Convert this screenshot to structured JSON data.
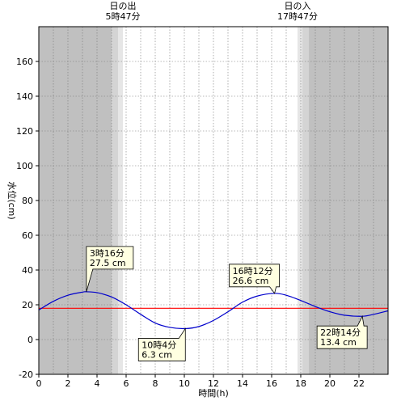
{
  "chart_data": {
    "type": "line",
    "xlabel": "時間(h)",
    "ylabel": "水位(cm)",
    "xlim": [
      0,
      24
    ],
    "ylim": [
      -20,
      180
    ],
    "x_ticks": [
      0,
      2,
      4,
      6,
      8,
      10,
      12,
      14,
      16,
      18,
      20,
      22
    ],
    "y_ticks": [
      -20,
      0,
      20,
      40,
      60,
      80,
      100,
      120,
      140,
      160
    ],
    "grid": true,
    "reference_level": 18,
    "colors": {
      "tide": "#0000cc",
      "reference": "#ff0000",
      "night": "#c0c0c0",
      "twilight_outer": "#d4d4d4",
      "twilight_inner": "#e6e6e6",
      "callout": "#ffffe1"
    },
    "sunrise": {
      "label": "日の出",
      "time": "5時47分",
      "hour": 5.78
    },
    "sunset": {
      "label": "日の入",
      "time": "17時47分",
      "hour": 17.78
    },
    "series": [
      {
        "x": [
          0,
          1,
          2,
          3,
          3.27,
          4,
          5,
          6,
          7,
          8,
          9,
          10.07,
          11,
          12,
          13,
          14,
          15,
          16.2,
          17,
          18,
          19,
          20,
          21,
          22.23,
          23,
          24
        ],
        "y": [
          17,
          22,
          25.5,
          27.3,
          27.5,
          27,
          24.5,
          20,
          14.5,
          9.5,
          7,
          6.3,
          7.5,
          11,
          16,
          21.5,
          25,
          26.6,
          25.5,
          22.5,
          19,
          16,
          14,
          13.4,
          14.5,
          16.5
        ]
      }
    ],
    "annotations": [
      {
        "time": "3時16分",
        "value": "27.5 cm",
        "x": 3.27,
        "y": 27.5
      },
      {
        "time": "10時4分",
        "value": "6.3 cm",
        "x": 10.07,
        "y": 6.3
      },
      {
        "time": "16時12分",
        "value": "26.6 cm",
        "x": 16.2,
        "y": 26.6
      },
      {
        "time": "22時14分",
        "value": "13.4 cm",
        "x": 22.23,
        "y": 13.4
      }
    ]
  }
}
